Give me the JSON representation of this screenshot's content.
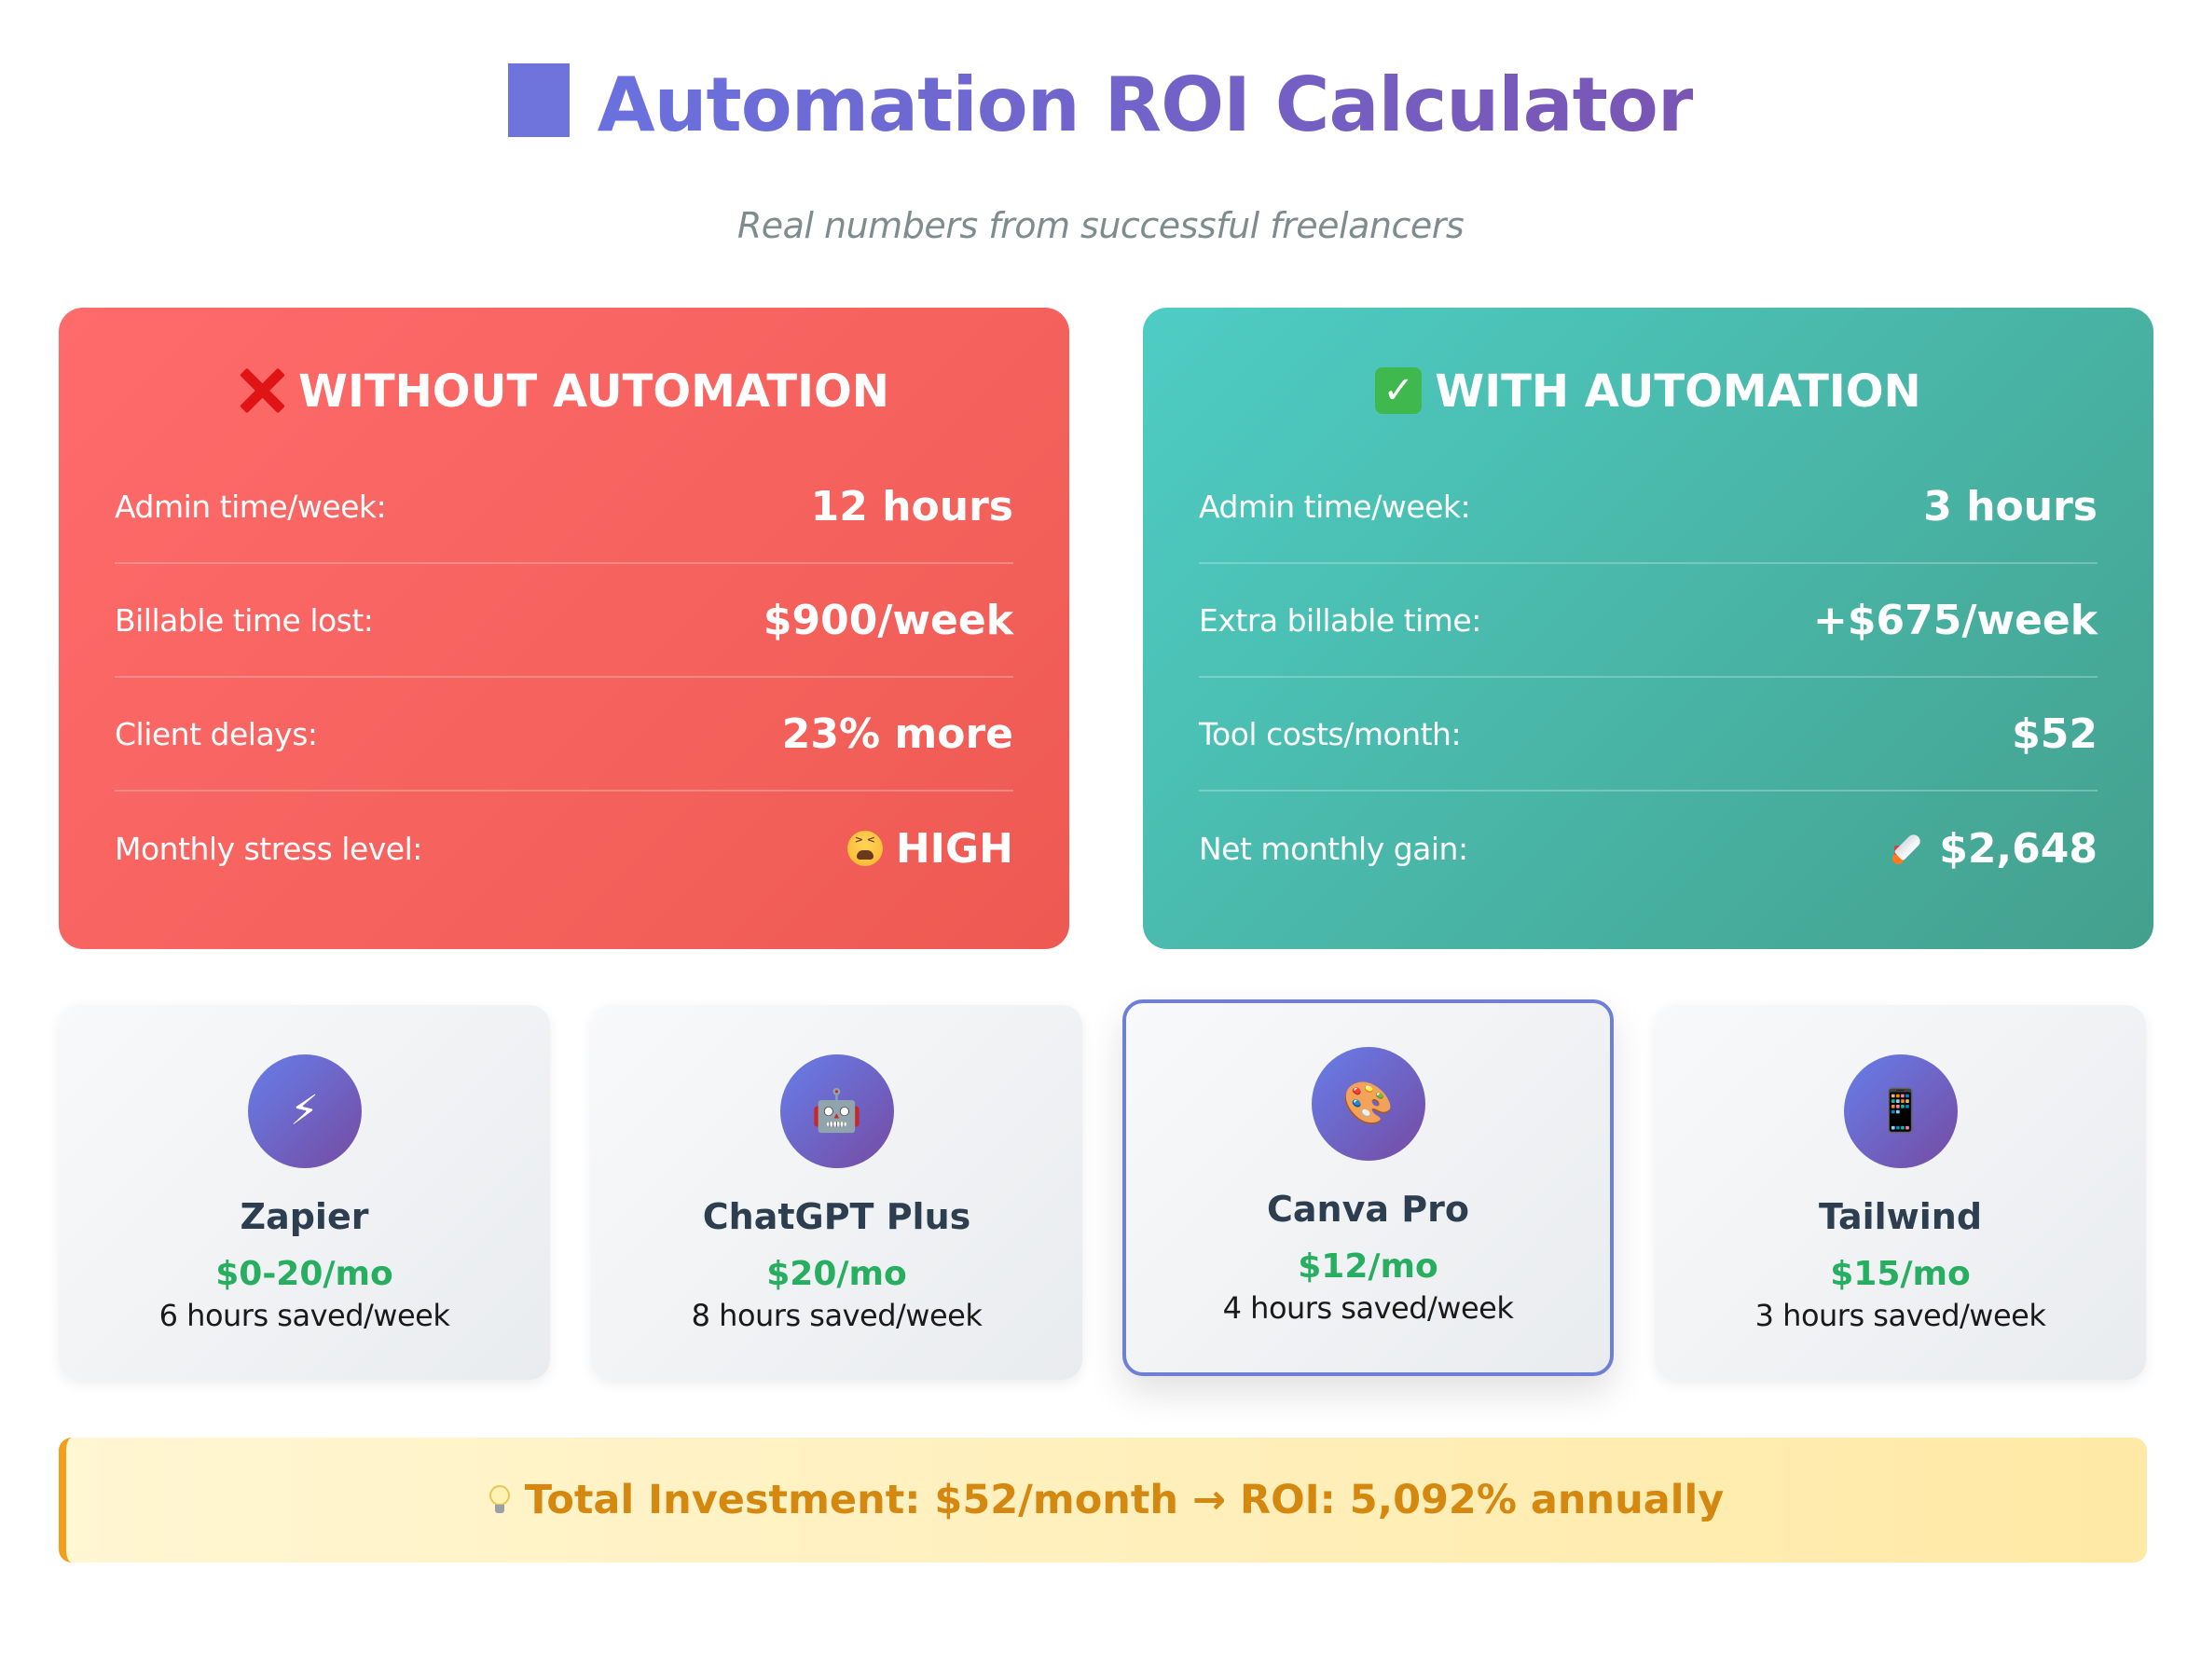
{
  "header": {
    "title": "Automation ROI Calculator",
    "subtitle": "Real numbers from successful freelancers",
    "title_icon": "blue-square-icon",
    "title_gradient": [
      "#6a71de",
      "#7a55b4"
    ]
  },
  "without": {
    "heading": "WITHOUT AUTOMATION",
    "heading_icon": "red-x-icon",
    "colors": [
      "#ff6b6b",
      "#ee5a52"
    ],
    "rows": [
      {
        "label": "Admin time/week:",
        "value": "12 hours"
      },
      {
        "label": "Billable time lost:",
        "value": "$900/week"
      },
      {
        "label": "Client delays:",
        "value": "23% more"
      },
      {
        "label": "Monthly stress level:",
        "value": "HIGH",
        "icon": "tired-face-icon"
      }
    ]
  },
  "with": {
    "heading": "WITH AUTOMATION",
    "heading_icon": "green-check-icon",
    "colors": [
      "#4ecdc4",
      "#44a08d"
    ],
    "rows": [
      {
        "label": "Admin time/week:",
        "value": "3 hours"
      },
      {
        "label": "Extra billable time:",
        "value": "+$675/week"
      },
      {
        "label": "Tool costs/month:",
        "value": "$52"
      },
      {
        "label": "Net monthly gain:",
        "value": "$2,648",
        "icon": "rocket-icon"
      }
    ]
  },
  "tools": [
    {
      "name": "Zapier",
      "price": "$0-20/mo",
      "saved": "6 hours saved/week",
      "icon": "lightning-icon",
      "glyph": "⚡",
      "featured": false
    },
    {
      "name": "ChatGPT Plus",
      "price": "$20/mo",
      "saved": "8 hours saved/week",
      "icon": "robot-icon",
      "glyph": "🤖",
      "featured": false
    },
    {
      "name": "Canva Pro",
      "price": "$12/mo",
      "saved": "4 hours saved/week",
      "icon": "palette-icon",
      "glyph": "🎨",
      "featured": true
    },
    {
      "name": "Tailwind",
      "price": "$15/mo",
      "saved": "3 hours saved/week",
      "icon": "phone-icon",
      "glyph": "📱",
      "featured": false
    }
  ],
  "summary": {
    "text": "Total Investment: $52/month → ROI: 5,092% annually",
    "icon": "lightbulb-icon",
    "accent": "#f0a01e"
  }
}
